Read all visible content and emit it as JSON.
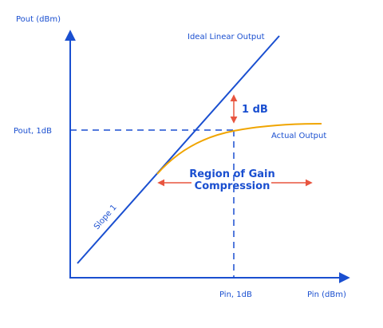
{
  "y_axis_label": "Pout (dBm)",
  "x_axis_label": "Pin (dBm)",
  "ideal_label": "Ideal Linear Output",
  "actual_label": "Actual Output",
  "compression_step_label": "1 dB",
  "pout_1db_label": "Pout, 1dB",
  "pin_1db_label": "Pin, 1dB",
  "slope_label": "Slope 1",
  "region_label": [
    "Region of Gain",
    "Compression"
  ]
}
